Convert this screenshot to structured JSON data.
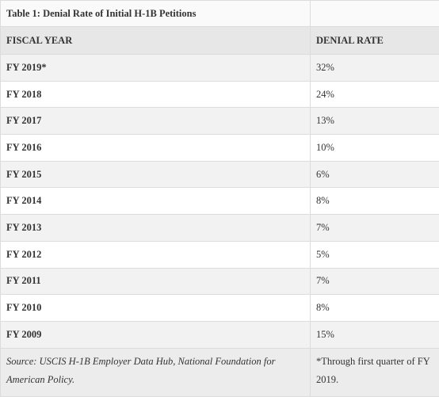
{
  "title": "Table 1: Denial Rate of Initial H-1B Petitions",
  "table": {
    "header": [
      "FISCAL YEAR",
      "DENIAL RATE"
    ],
    "rows": [
      [
        "FY 2019*",
        "32%"
      ],
      [
        "FY 2018",
        "24%"
      ],
      [
        "FY 2017",
        "13%"
      ],
      [
        "FY 2016",
        "10%"
      ],
      [
        "FY 2015",
        "6%"
      ],
      [
        "FY 2014",
        "8%"
      ],
      [
        "FY 2013",
        "7%"
      ],
      [
        "FY 2012",
        "5%"
      ],
      [
        "FY 2011",
        "7%"
      ],
      [
        "FY 2010",
        "8%"
      ],
      [
        "FY 2009",
        "15%"
      ]
    ],
    "footer": [
      "Source: USCIS H-1B Employer Data Hub, National Foundation for American Policy.",
      "*Through first quarter of FY 2019."
    ]
  }
}
